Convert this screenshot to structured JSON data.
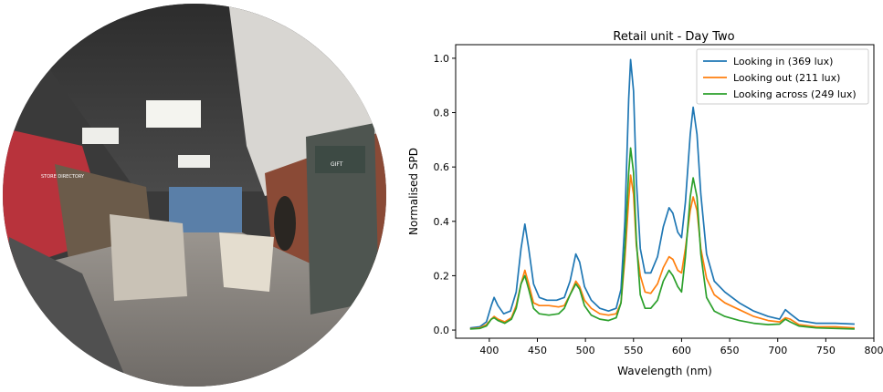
{
  "photo": {
    "description_icon": "fisheye-photo",
    "store_sign_text": "STORE DIRECTORY",
    "shelf_sign_text": "GIFT"
  },
  "chart_data": {
    "type": "line",
    "title": "Retail unit - Day Two",
    "xlabel": "Wavelength (nm)",
    "ylabel": "Normalised SPD",
    "xlim": [
      365,
      800
    ],
    "ylim": [
      -0.03,
      1.05
    ],
    "xticks": [
      400,
      450,
      500,
      550,
      600,
      650,
      700,
      750,
      800
    ],
    "yticks": [
      0.0,
      0.2,
      0.4,
      0.6,
      0.8,
      1.0
    ],
    "legend_position": "top-right",
    "grid": false,
    "series": [
      {
        "name": "Looking in (369 lux)",
        "color": "#1f77b4",
        "points": [
          [
            380,
            0.008
          ],
          [
            390,
            0.012
          ],
          [
            397,
            0.03
          ],
          [
            402,
            0.09
          ],
          [
            405,
            0.12
          ],
          [
            409,
            0.09
          ],
          [
            415,
            0.06
          ],
          [
            422,
            0.07
          ],
          [
            428,
            0.14
          ],
          [
            433,
            0.3
          ],
          [
            437,
            0.39
          ],
          [
            441,
            0.3
          ],
          [
            446,
            0.17
          ],
          [
            452,
            0.12
          ],
          [
            460,
            0.11
          ],
          [
            470,
            0.11
          ],
          [
            478,
            0.12
          ],
          [
            484,
            0.18
          ],
          [
            490,
            0.28
          ],
          [
            494,
            0.25
          ],
          [
            499,
            0.16
          ],
          [
            506,
            0.11
          ],
          [
            515,
            0.08
          ],
          [
            524,
            0.07
          ],
          [
            532,
            0.08
          ],
          [
            537,
            0.15
          ],
          [
            541,
            0.4
          ],
          [
            545,
            0.85
          ],
          [
            547,
            0.995
          ],
          [
            550,
            0.88
          ],
          [
            553,
            0.55
          ],
          [
            557,
            0.3
          ],
          [
            562,
            0.21
          ],
          [
            568,
            0.21
          ],
          [
            575,
            0.27
          ],
          [
            581,
            0.38
          ],
          [
            587,
            0.45
          ],
          [
            591,
            0.43
          ],
          [
            596,
            0.36
          ],
          [
            600,
            0.34
          ],
          [
            604,
            0.47
          ],
          [
            609,
            0.72
          ],
          [
            612,
            0.82
          ],
          [
            616,
            0.72
          ],
          [
            620,
            0.5
          ],
          [
            626,
            0.28
          ],
          [
            634,
            0.18
          ],
          [
            645,
            0.14
          ],
          [
            660,
            0.1
          ],
          [
            675,
            0.07
          ],
          [
            690,
            0.05
          ],
          [
            702,
            0.04
          ],
          [
            708,
            0.075
          ],
          [
            713,
            0.06
          ],
          [
            722,
            0.035
          ],
          [
            740,
            0.025
          ],
          [
            760,
            0.025
          ],
          [
            780,
            0.022
          ]
        ]
      },
      {
        "name": "Looking out (211 lux)",
        "color": "#ff7f0e",
        "points": [
          [
            380,
            0.005
          ],
          [
            390,
            0.008
          ],
          [
            397,
            0.02
          ],
          [
            402,
            0.04
          ],
          [
            405,
            0.05
          ],
          [
            409,
            0.04
          ],
          [
            416,
            0.03
          ],
          [
            423,
            0.045
          ],
          [
            428,
            0.09
          ],
          [
            433,
            0.17
          ],
          [
            437,
            0.22
          ],
          [
            441,
            0.17
          ],
          [
            446,
            0.1
          ],
          [
            452,
            0.09
          ],
          [
            462,
            0.09
          ],
          [
            472,
            0.085
          ],
          [
            478,
            0.09
          ],
          [
            484,
            0.13
          ],
          [
            490,
            0.18
          ],
          [
            494,
            0.16
          ],
          [
            499,
            0.11
          ],
          [
            506,
            0.08
          ],
          [
            515,
            0.06
          ],
          [
            524,
            0.055
          ],
          [
            532,
            0.06
          ],
          [
            537,
            0.1
          ],
          [
            541,
            0.26
          ],
          [
            545,
            0.48
          ],
          [
            547,
            0.57
          ],
          [
            550,
            0.5
          ],
          [
            553,
            0.31
          ],
          [
            557,
            0.2
          ],
          [
            562,
            0.14
          ],
          [
            568,
            0.135
          ],
          [
            575,
            0.17
          ],
          [
            581,
            0.23
          ],
          [
            587,
            0.27
          ],
          [
            591,
            0.26
          ],
          [
            596,
            0.22
          ],
          [
            600,
            0.21
          ],
          [
            604,
            0.3
          ],
          [
            609,
            0.44
          ],
          [
            612,
            0.49
          ],
          [
            616,
            0.44
          ],
          [
            620,
            0.3
          ],
          [
            626,
            0.19
          ],
          [
            634,
            0.13
          ],
          [
            645,
            0.1
          ],
          [
            660,
            0.075
          ],
          [
            675,
            0.05
          ],
          [
            690,
            0.035
          ],
          [
            702,
            0.03
          ],
          [
            708,
            0.045
          ],
          [
            713,
            0.04
          ],
          [
            722,
            0.02
          ],
          [
            740,
            0.012
          ],
          [
            760,
            0.012
          ],
          [
            780,
            0.008
          ]
        ]
      },
      {
        "name": "Looking across (249 lux)",
        "color": "#2ca02c",
        "points": [
          [
            380,
            0.004
          ],
          [
            390,
            0.006
          ],
          [
            397,
            0.015
          ],
          [
            402,
            0.04
          ],
          [
            405,
            0.045
          ],
          [
            409,
            0.035
          ],
          [
            416,
            0.025
          ],
          [
            423,
            0.04
          ],
          [
            428,
            0.08
          ],
          [
            433,
            0.17
          ],
          [
            437,
            0.2
          ],
          [
            441,
            0.15
          ],
          [
            446,
            0.08
          ],
          [
            452,
            0.06
          ],
          [
            462,
            0.055
          ],
          [
            472,
            0.06
          ],
          [
            478,
            0.08
          ],
          [
            484,
            0.13
          ],
          [
            490,
            0.17
          ],
          [
            494,
            0.15
          ],
          [
            499,
            0.09
          ],
          [
            506,
            0.055
          ],
          [
            515,
            0.04
          ],
          [
            524,
            0.035
          ],
          [
            532,
            0.045
          ],
          [
            537,
            0.1
          ],
          [
            541,
            0.3
          ],
          [
            545,
            0.58
          ],
          [
            547,
            0.67
          ],
          [
            550,
            0.58
          ],
          [
            553,
            0.33
          ],
          [
            557,
            0.13
          ],
          [
            562,
            0.08
          ],
          [
            568,
            0.08
          ],
          [
            575,
            0.11
          ],
          [
            581,
            0.18
          ],
          [
            587,
            0.22
          ],
          [
            591,
            0.2
          ],
          [
            596,
            0.16
          ],
          [
            600,
            0.14
          ],
          [
            604,
            0.27
          ],
          [
            609,
            0.49
          ],
          [
            612,
            0.56
          ],
          [
            616,
            0.49
          ],
          [
            620,
            0.28
          ],
          [
            626,
            0.12
          ],
          [
            634,
            0.07
          ],
          [
            645,
            0.05
          ],
          [
            660,
            0.035
          ],
          [
            675,
            0.025
          ],
          [
            690,
            0.02
          ],
          [
            702,
            0.022
          ],
          [
            708,
            0.04
          ],
          [
            713,
            0.03
          ],
          [
            722,
            0.015
          ],
          [
            740,
            0.008
          ],
          [
            760,
            0.006
          ],
          [
            780,
            0.004
          ]
        ]
      }
    ]
  }
}
